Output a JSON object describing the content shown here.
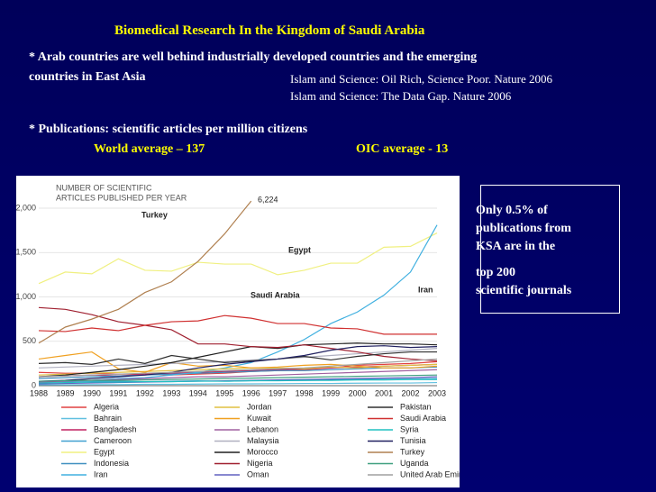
{
  "slide": {
    "heading": "Biomedical Research In the Kingdom of Saudi Arabia",
    "bullet1_lines": [
      "* Arab countries are well behind industrially developed countries and the emerging",
      "countries in East Asia"
    ],
    "references": [
      "Islam and Science: Oil Rich, Science Poor. Nature 2006",
      "Islam and Science: The Data Gap. Nature 2006"
    ],
    "bullet2": "* Publications: scientific articles per million citizens",
    "world_average": "World average – 137",
    "oic_average": "OIC average - 13",
    "box_lines": [
      "Only 0.5% of",
      "publications from",
      "KSA are in the",
      "top 200",
      "scientific journals"
    ]
  },
  "chart_data": {
    "type": "line",
    "title_lines": [
      "NUMBER OF SCIENTIFIC",
      "ARTICLES PUBLISHED PER YEAR"
    ],
    "categories": [
      "1988",
      "1989",
      "1990",
      "1991",
      "1992",
      "1993",
      "1994",
      "1995",
      "1996",
      "1997",
      "1998",
      "1999",
      "2000",
      "2001",
      "2002",
      "2003"
    ],
    "ylim": [
      0,
      2000
    ],
    "yticks": [
      0,
      500,
      {
        "value": 1000,
        "label": "1,000"
      },
      {
        "value": 1500,
        "label": "1,500"
      },
      {
        "value": 2000,
        "label": "2,000"
      }
    ],
    "annotations": [
      "Turkey",
      "Egypt",
      "Saudi Arabia",
      "Iran",
      "6,224"
    ],
    "series": [
      {
        "name": "Algeria",
        "color": "#e04040",
        "values": [
          150,
          140,
          140,
          130,
          130,
          120,
          130,
          140,
          160,
          170,
          180,
          200,
          230,
          240,
          250,
          270
        ]
      },
      {
        "name": "Bahrain",
        "color": "#60c0e0",
        "values": [
          10,
          10,
          12,
          12,
          15,
          15,
          18,
          20,
          20,
          22,
          25,
          25,
          28,
          30,
          30,
          35
        ]
      },
      {
        "name": "Bangladesh",
        "color": "#c02060",
        "values": [
          100,
          110,
          120,
          110,
          130,
          140,
          150,
          160,
          170,
          180,
          190,
          200,
          210,
          220,
          230,
          240
        ]
      },
      {
        "name": "Cameroon",
        "color": "#40a0d0",
        "values": [
          40,
          45,
          50,
          50,
          45,
          50,
          55,
          50,
          55,
          60,
          60,
          65,
          70,
          70,
          75,
          80
        ]
      },
      {
        "name": "Egypt",
        "color": "#f0f080",
        "values": [
          1150,
          1280,
          1260,
          1430,
          1300,
          1290,
          1390,
          1370,
          1370,
          1250,
          1300,
          1380,
          1380,
          1560,
          1570,
          1720
        ]
      },
      {
        "name": "Indonesia",
        "color": "#4090c0",
        "values": [
          80,
          90,
          100,
          110,
          120,
          130,
          140,
          150,
          160,
          170,
          170,
          180,
          190,
          200,
          200,
          210
        ]
      },
      {
        "name": "Iran",
        "color": "#40b0e0",
        "values": [
          50,
          50,
          60,
          80,
          90,
          120,
          150,
          200,
          260,
          380,
          520,
          700,
          830,
          1020,
          1280,
          1810
        ]
      },
      {
        "name": "Jordan",
        "color": "#e0c040",
        "values": [
          120,
          130,
          140,
          150,
          160,
          170,
          180,
          190,
          200,
          200,
          190,
          210,
          200,
          220,
          230,
          240
        ]
      },
      {
        "name": "Kuwait",
        "color": "#f0a020",
        "values": [
          300,
          340,
          380,
          190,
          150,
          260,
          220,
          230,
          200,
          210,
          230,
          240,
          220,
          200,
          200,
          220
        ]
      },
      {
        "name": "Lebanon",
        "color": "#a060a0",
        "values": [
          40,
          50,
          60,
          70,
          80,
          90,
          100,
          100,
          110,
          120,
          130,
          140,
          150,
          160,
          170,
          180
        ]
      },
      {
        "name": "Malaysia",
        "color": "#b0b0c0",
        "values": [
          200,
          210,
          220,
          230,
          240,
          250,
          260,
          270,
          290,
          300,
          320,
          340,
          360,
          380,
          400,
          420
        ]
      },
      {
        "name": "Morocco",
        "color": "#202020",
        "values": [
          100,
          120,
          150,
          180,
          220,
          260,
          320,
          380,
          440,
          420,
          460,
          470,
          480,
          470,
          470,
          460
        ]
      },
      {
        "name": "Nigeria",
        "color": "#a02030",
        "values": [
          880,
          860,
          800,
          720,
          680,
          630,
          470,
          470,
          440,
          430,
          460,
          420,
          380,
          330,
          300,
          280
        ]
      },
      {
        "name": "Oman",
        "color": "#6060c0",
        "values": [
          20,
          25,
          30,
          35,
          40,
          45,
          50,
          55,
          60,
          65,
          70,
          75,
          80,
          85,
          90,
          100
        ]
      },
      {
        "name": "Pakistan",
        "color": "#303030",
        "values": [
          250,
          260,
          240,
          300,
          250,
          340,
          300,
          260,
          280,
          300,
          330,
          290,
          330,
          360,
          380,
          380
        ]
      },
      {
        "name": "Saudi Arabia",
        "color": "#d03030",
        "values": [
          620,
          610,
          650,
          620,
          680,
          720,
          730,
          790,
          760,
          700,
          700,
          650,
          640,
          580,
          580,
          580
        ]
      },
      {
        "name": "Syria",
        "color": "#20c0c0",
        "values": [
          30,
          35,
          40,
          40,
          45,
          45,
          50,
          50,
          55,
          55,
          60,
          60,
          65,
          65,
          70,
          70
        ]
      },
      {
        "name": "Tunisia",
        "color": "#202060",
        "values": [
          50,
          60,
          80,
          100,
          120,
          150,
          200,
          240,
          270,
          300,
          340,
          400,
          440,
          450,
          430,
          440
        ]
      },
      {
        "name": "Turkey",
        "color": "#b08050",
        "values": [
          480,
          660,
          750,
          860,
          1050,
          1170,
          1400,
          1710,
          2080,
          null,
          null,
          null,
          null,
          null,
          null,
          null
        ]
      },
      {
        "name": "Uganda",
        "color": "#40a080",
        "values": [
          50,
          55,
          60,
          60,
          65,
          70,
          75,
          80,
          85,
          90,
          95,
          100,
          105,
          110,
          115,
          120
        ]
      },
      {
        "name": "United Arab Emirates",
        "color": "#a0a0a0",
        "values": [
          100,
          110,
          120,
          130,
          140,
          150,
          160,
          170,
          180,
          190,
          200,
          220,
          240,
          260,
          280,
          300
        ]
      }
    ]
  }
}
